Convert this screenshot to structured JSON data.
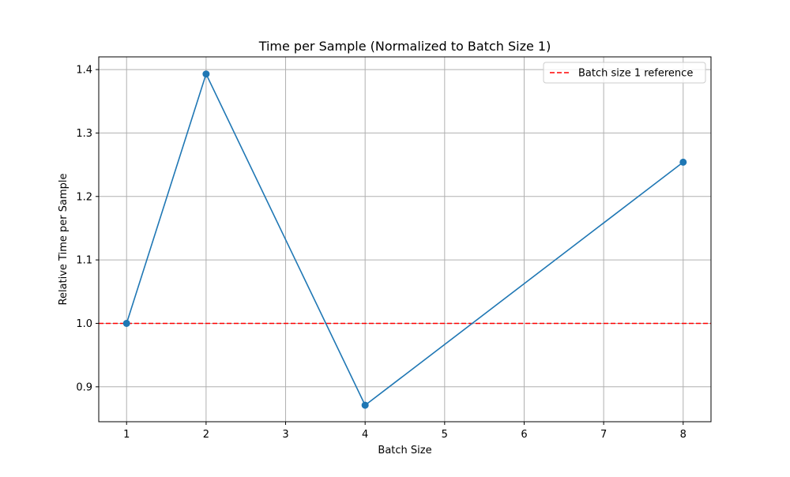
{
  "chart_data": {
    "type": "line",
    "title": "Time per Sample (Normalized to Batch Size 1)",
    "xlabel": "Batch Size",
    "ylabel": "Relative Time per Sample",
    "xlim": [
      0.65,
      8.35
    ],
    "ylim": [
      0.845,
      1.42
    ],
    "x_ticks": [
      1,
      2,
      3,
      4,
      5,
      6,
      7,
      8
    ],
    "y_ticks": [
      0.9,
      1.0,
      1.1,
      1.2,
      1.3,
      1.4
    ],
    "grid": true,
    "legend_position": "top-right",
    "series": [
      {
        "color": "#1f77b4",
        "marker": "circle",
        "x": [
          1,
          2,
          4,
          8
        ],
        "y": [
          1.0,
          1.393,
          0.871,
          1.254
        ]
      }
    ],
    "reference_lines": [
      {
        "name": "Batch size 1 reference",
        "y": 1.0,
        "color": "#ff0000",
        "style": "dashed"
      }
    ]
  }
}
